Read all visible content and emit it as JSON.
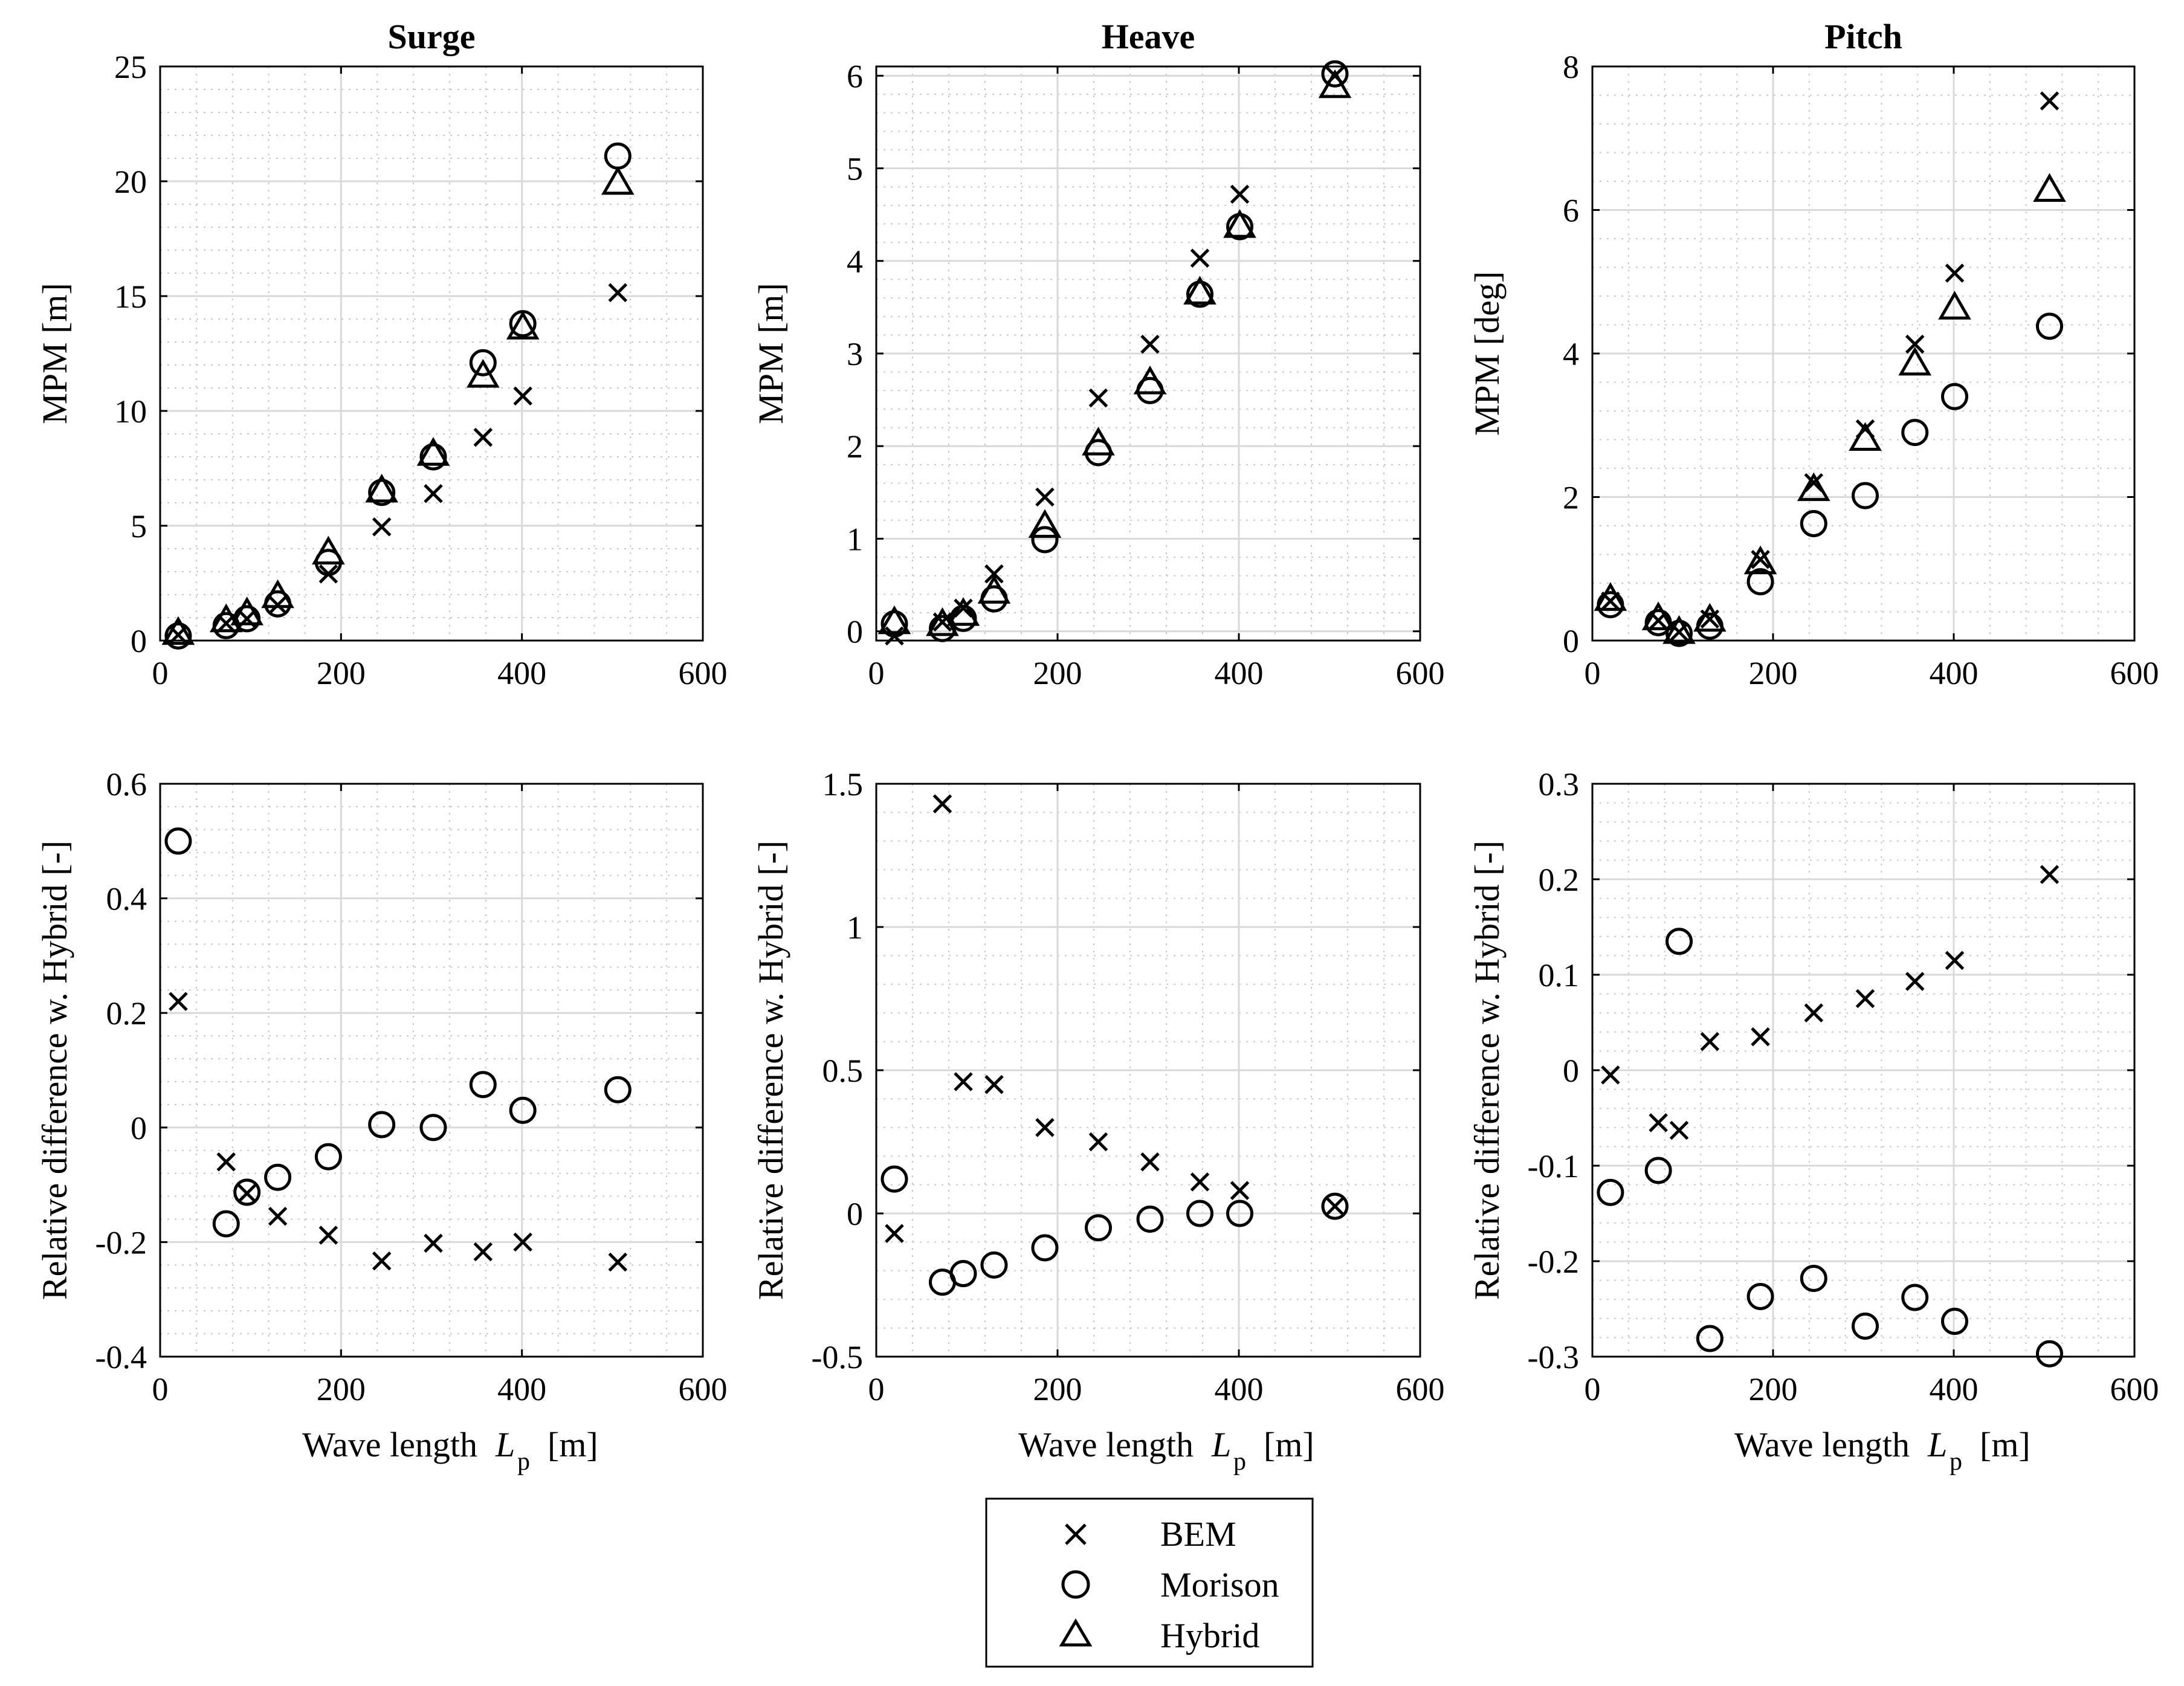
{
  "figure": {
    "xlabel_text": "Wave length",
    "xlabel_symbol": "L",
    "xlabel_subscript": "p",
    "xlabel_unit": "[m]"
  },
  "legend": {
    "entries": [
      {
        "label": "BEM",
        "marker": "x-mark"
      },
      {
        "label": "Morison",
        "marker": "circle"
      },
      {
        "label": "Hybrid",
        "marker": "triangle"
      }
    ]
  },
  "chart_data": [
    {
      "id": "surge-mpm",
      "type": "scatter",
      "title": "Surge",
      "ylabel": "MPM [m]",
      "xlim": [
        0,
        600
      ],
      "ylim": [
        0,
        25
      ],
      "xticks": [
        0,
        200,
        400,
        600
      ],
      "yticks": [
        0,
        5,
        10,
        15,
        20,
        25
      ],
      "grid": true,
      "x": [
        20,
        73,
        96,
        130,
        186,
        245,
        302,
        357,
        401,
        506
      ],
      "series": [
        {
          "name": "BEM",
          "marker": "x",
          "values": [
            0.25,
            0.75,
            0.95,
            1.55,
            2.9,
            4.95,
            6.4,
            8.85,
            10.65,
            15.15
          ]
        },
        {
          "name": "Morison",
          "marker": "o",
          "values": [
            0.2,
            0.65,
            0.95,
            1.6,
            3.4,
            6.45,
            8.0,
            12.1,
            13.8,
            21.1
          ]
        },
        {
          "name": "Hybrid",
          "marker": "^",
          "values": [
            0.3,
            0.85,
            1.15,
            1.9,
            3.8,
            6.5,
            8.1,
            11.5,
            13.6,
            19.9
          ]
        }
      ]
    },
    {
      "id": "heave-mpm",
      "type": "scatter",
      "title": "Heave",
      "ylabel": "MPM [m]",
      "xlim": [
        0,
        600
      ],
      "ylim": [
        -0.1,
        6.1
      ],
      "xticks": [
        0,
        200,
        400,
        600
      ],
      "yticks": [
        0,
        1,
        2,
        3,
        4,
        5,
        6
      ],
      "grid": true,
      "x": [
        20,
        73,
        96,
        130,
        186,
        245,
        302,
        357,
        401,
        506
      ],
      "series": [
        {
          "name": "BEM",
          "marker": "x",
          "values": [
            -0.05,
            0.1,
            0.25,
            0.62,
            1.45,
            2.52,
            3.1,
            4.03,
            4.72,
            6.0
          ]
        },
        {
          "name": "Morison",
          "marker": "o",
          "values": [
            0.08,
            0.03,
            0.14,
            0.35,
            0.99,
            1.93,
            2.6,
            3.64,
            4.37,
            6.02
          ]
        },
        {
          "name": "Hybrid",
          "marker": "^",
          "values": [
            0.09,
            0.07,
            0.18,
            0.42,
            1.13,
            2.02,
            2.68,
            3.65,
            4.37,
            5.88
          ]
        }
      ]
    },
    {
      "id": "pitch-mpm",
      "type": "scatter",
      "title": "Pitch",
      "ylabel": "MPM [deg]",
      "xlim": [
        0,
        600
      ],
      "ylim": [
        0,
        8
      ],
      "xticks": [
        0,
        200,
        400,
        600
      ],
      "yticks": [
        0,
        2,
        4,
        6,
        8
      ],
      "grid": true,
      "x": [
        20,
        73,
        96,
        130,
        186,
        245,
        302,
        357,
        401,
        506
      ],
      "series": [
        {
          "name": "BEM",
          "marker": "x",
          "values": [
            0.55,
            0.28,
            0.12,
            0.3,
            1.13,
            2.2,
            2.95,
            4.13,
            5.12,
            7.52
          ]
        },
        {
          "name": "Morison",
          "marker": "o",
          "values": [
            0.5,
            0.25,
            0.1,
            0.2,
            0.82,
            1.63,
            2.02,
            2.9,
            3.4,
            4.38
          ]
        },
        {
          "name": "Hybrid",
          "marker": "^",
          "values": [
            0.57,
            0.3,
            0.11,
            0.28,
            1.08,
            2.1,
            2.8,
            3.85,
            4.63,
            6.27
          ]
        }
      ]
    },
    {
      "id": "surge-reldiff",
      "type": "scatter",
      "ylabel": "Relative difference w. Hybrid [-]",
      "xlim": [
        0,
        600
      ],
      "ylim": [
        -0.4,
        0.6
      ],
      "xticks": [
        0,
        200,
        400,
        600
      ],
      "yticks": [
        -0.4,
        -0.2,
        0,
        0.2,
        0.4,
        0.6
      ],
      "grid": true,
      "x": [
        20,
        73,
        96,
        130,
        186,
        245,
        302,
        357,
        401,
        506
      ],
      "series": [
        {
          "name": "BEM",
          "marker": "x",
          "values": [
            0.22,
            -0.06,
            -0.115,
            -0.155,
            -0.188,
            -0.233,
            -0.202,
            -0.217,
            -0.2,
            -0.235
          ]
        },
        {
          "name": "Morison",
          "marker": "o",
          "values": [
            0.5,
            -0.168,
            -0.113,
            -0.087,
            -0.051,
            0.005,
            0.0,
            0.075,
            0.03,
            0.066
          ]
        }
      ]
    },
    {
      "id": "heave-reldiff",
      "type": "scatter",
      "ylabel": "Relative difference w. Hybrid [-]",
      "xlim": [
        0,
        600
      ],
      "ylim": [
        -0.5,
        1.5
      ],
      "xticks": [
        0,
        200,
        400,
        600
      ],
      "yticks": [
        -0.5,
        0,
        0.5,
        1,
        1.5
      ],
      "grid": true,
      "x": [
        20,
        73,
        96,
        130,
        186,
        245,
        302,
        357,
        401,
        506
      ],
      "series": [
        {
          "name": "BEM",
          "marker": "x",
          "values": [
            -0.07,
            1.43,
            0.46,
            0.45,
            0.3,
            0.25,
            0.18,
            0.11,
            0.08,
            0.025
          ]
        },
        {
          "name": "Morison",
          "marker": "o",
          "values": [
            0.12,
            -0.24,
            -0.21,
            -0.18,
            -0.12,
            -0.05,
            -0.02,
            0.0,
            0.0,
            0.025
          ]
        }
      ]
    },
    {
      "id": "pitch-reldiff",
      "type": "scatter",
      "ylabel": "Relative difference w. Hybrid [-]",
      "xlim": [
        0,
        600
      ],
      "ylim": [
        -0.3,
        0.3
      ],
      "xticks": [
        0,
        200,
        400,
        600
      ],
      "yticks": [
        -0.3,
        -0.2,
        -0.1,
        0,
        0.1,
        0.2,
        0.3
      ],
      "grid": true,
      "x": [
        20,
        73,
        96,
        130,
        186,
        245,
        302,
        357,
        401,
        506
      ],
      "series": [
        {
          "name": "BEM",
          "marker": "x",
          "values": [
            -0.005,
            -0.055,
            -0.063,
            0.03,
            0.035,
            0.06,
            0.075,
            0.093,
            0.115,
            0.205
          ]
        },
        {
          "name": "Morison",
          "marker": "o",
          "values": [
            -0.128,
            -0.105,
            0.135,
            -0.281,
            -0.237,
            -0.218,
            -0.268,
            -0.238,
            -0.263,
            -0.297
          ]
        }
      ]
    }
  ]
}
